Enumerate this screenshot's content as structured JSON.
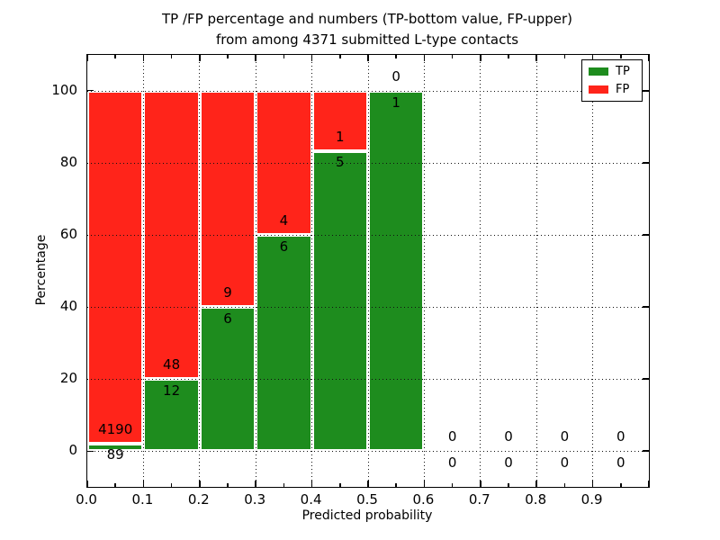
{
  "title": {
    "line1": "TP /FP percentage and numbers (TP-bottom value, FP-upper)",
    "line2": "from among 4371 submitted L-type contacts"
  },
  "legend": {
    "position": "upper-right",
    "items": [
      {
        "label": "TP",
        "color": "#1e8c1e"
      },
      {
        "label": "FP",
        "color": "#ff241a"
      }
    ]
  },
  "chart_data": {
    "type": "bar",
    "stacked": true,
    "normalized_to_percent": true,
    "title": "TP /FP percentage and numbers (TP-bottom value, FP-upper) from among 4371 submitted L-type contacts",
    "xlabel": "Predicted probability",
    "ylabel": "Percentage",
    "xlim": [
      0.0,
      1.0
    ],
    "ylim": [
      -10,
      110
    ],
    "bin_width": 0.1,
    "bin_starts": [
      0.0,
      0.1,
      0.2,
      0.3,
      0.4,
      0.5,
      0.6,
      0.7,
      0.8,
      0.9
    ],
    "series": [
      {
        "name": "TP",
        "color": "#1e8c1e",
        "counts": [
          89,
          12,
          6,
          6,
          5,
          1,
          0,
          0,
          0,
          0
        ]
      },
      {
        "name": "FP",
        "color": "#ff241a",
        "counts": [
          4190,
          48,
          9,
          4,
          1,
          0,
          0,
          0,
          0,
          0
        ]
      }
    ],
    "tp_percent_of_bin": [
      2.08,
      20.0,
      40.0,
      60.0,
      83.33,
      100.0,
      null,
      null,
      null,
      null
    ],
    "total_contacts": 4371,
    "x_tick_labels": [
      "0.0",
      "0.1",
      "0.2",
      "0.3",
      "0.4",
      "0.5",
      "0.6",
      "0.7",
      "0.8",
      "0.9"
    ],
    "x_minor_tick_step": 0.05,
    "y_ticks": [
      0,
      20,
      40,
      60,
      80,
      100
    ],
    "y_tick_labels": [
      "0",
      "20",
      "40",
      "60",
      "80",
      "100"
    ],
    "x_grid_positions": [
      0.1,
      0.2,
      0.3,
      0.4,
      0.5,
      0.6,
      0.7,
      0.8,
      0.9
    ],
    "grid_style": "dotted",
    "grid_on": true,
    "bar_edge_color": "#ffffff",
    "frame_color": "#000000",
    "background_color": "#ffffff"
  }
}
